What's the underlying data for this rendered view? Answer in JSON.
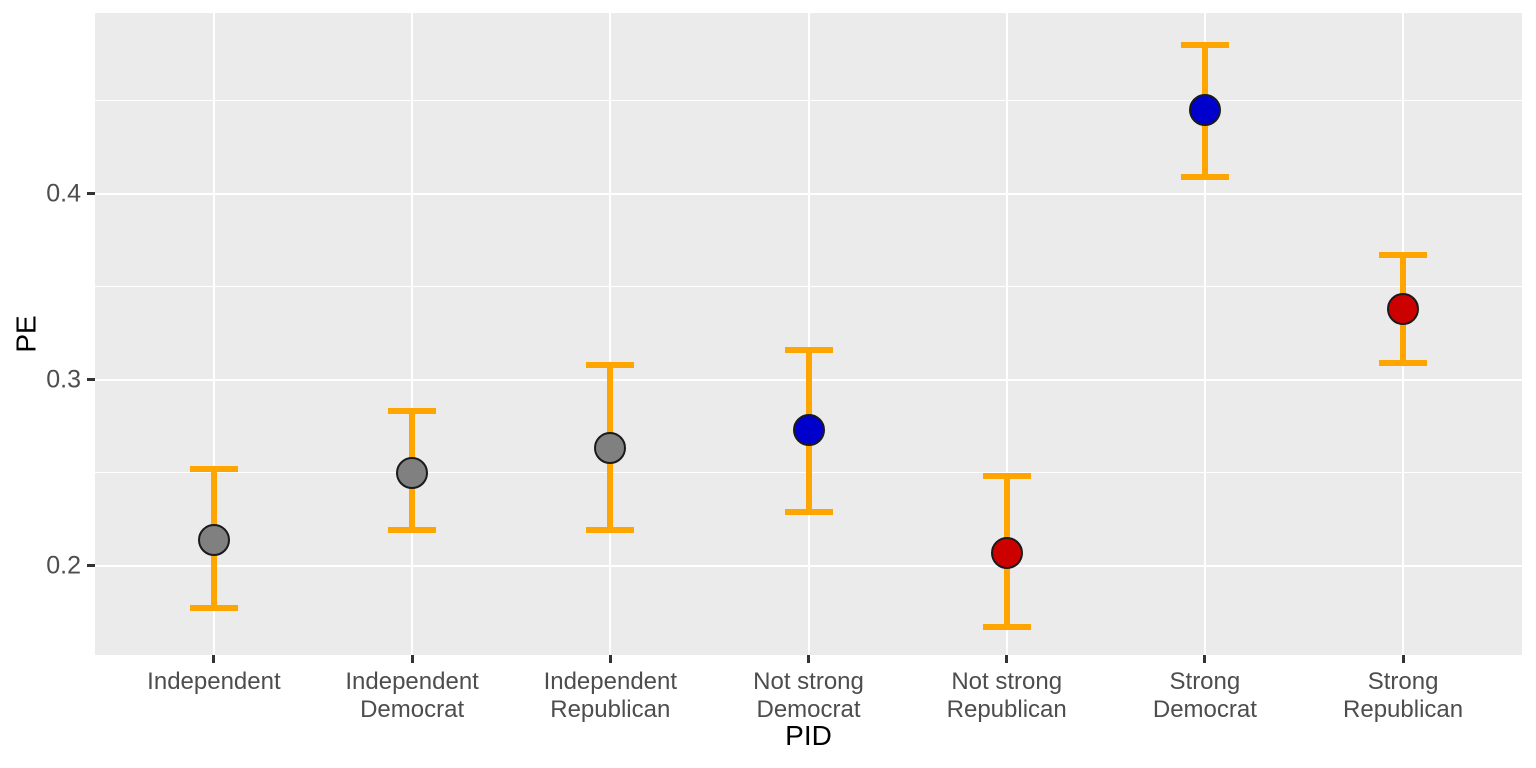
{
  "chart_data": {
    "type": "scatter",
    "subtype": "point-estimate-with-errorbars",
    "title": "",
    "xlabel": "PID",
    "ylabel": "PE",
    "ylim": [
      0.152,
      0.497
    ],
    "yticks_major": [
      0.2,
      0.3,
      0.4
    ],
    "ytick_labels": [
      "0.2",
      "0.3",
      "0.4"
    ],
    "yticks_minor": [
      0.25,
      0.35,
      0.45
    ],
    "grid": "on",
    "legend_position": "none",
    "categories": [
      "Independent",
      "Independent Democrat",
      "Independent Republican",
      "Not strong Democrat",
      "Not strong Republican",
      "Strong Democrat",
      "Strong Republican"
    ],
    "category_label_lines": [
      [
        "Independent"
      ],
      [
        "Independent",
        "Democrat"
      ],
      [
        "Independent",
        "Republican"
      ],
      [
        "Not strong",
        "Democrat"
      ],
      [
        "Not strong",
        "Republican"
      ],
      [
        "Strong",
        "Democrat"
      ],
      [
        "Strong",
        "Republican"
      ]
    ],
    "points": [
      {
        "category": "Independent",
        "pe": 0.214,
        "ci_low": 0.177,
        "ci_high": 0.252,
        "color_key": "gray"
      },
      {
        "category": "Independent Democrat",
        "pe": 0.25,
        "ci_low": 0.219,
        "ci_high": 0.283,
        "color_key": "gray"
      },
      {
        "category": "Independent Republican",
        "pe": 0.263,
        "ci_low": 0.219,
        "ci_high": 0.308,
        "color_key": "gray"
      },
      {
        "category": "Not strong Democrat",
        "pe": 0.273,
        "ci_low": 0.229,
        "ci_high": 0.316,
        "color_key": "blue"
      },
      {
        "category": "Not strong Republican",
        "pe": 0.207,
        "ci_low": 0.167,
        "ci_high": 0.248,
        "color_key": "red"
      },
      {
        "category": "Strong Democrat",
        "pe": 0.445,
        "ci_low": 0.409,
        "ci_high": 0.48,
        "color_key": "blue"
      },
      {
        "category": "Strong Republican",
        "pe": 0.338,
        "ci_low": 0.309,
        "ci_high": 0.367,
        "color_key": "red"
      }
    ],
    "colors": {
      "gray": "#808080",
      "blue": "#0000CD",
      "red": "#CD0000",
      "errorbar": "#FFA500",
      "panel_bg": "#EBEBEB",
      "grid": "#FFFFFF",
      "tick_label": "#4D4D4D",
      "axis_title": "#000000",
      "point_stroke": "#1A1A1A",
      "tick_mark": "#333333"
    }
  }
}
